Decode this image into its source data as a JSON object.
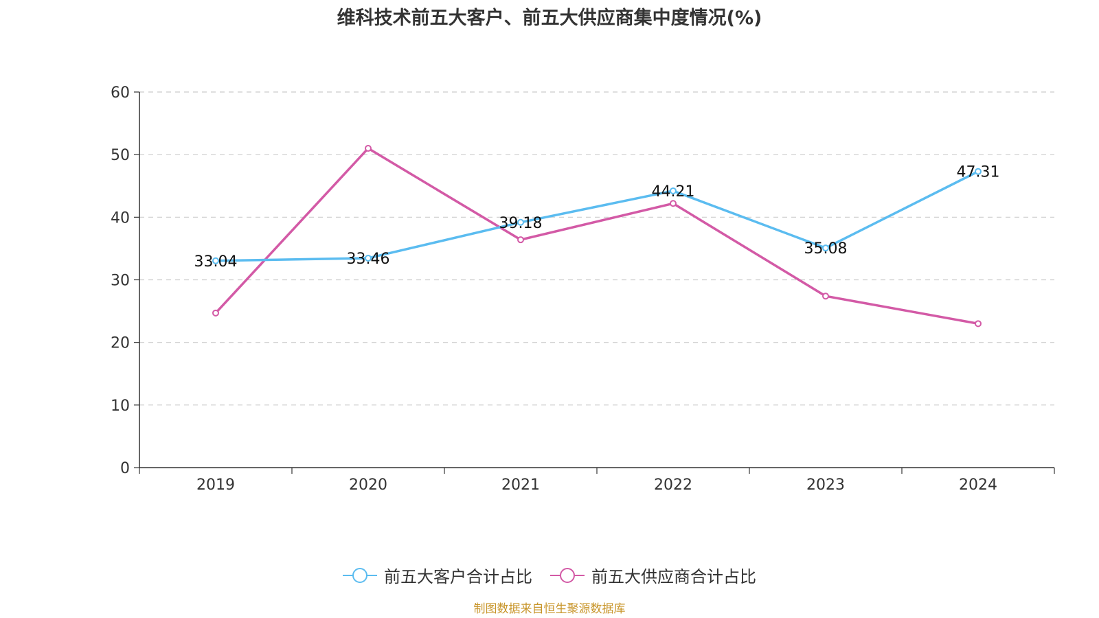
{
  "chart_data": {
    "type": "line",
    "title": "维科技术前五大客户、前五大供应商集中度情况(%)",
    "categories": [
      "2019",
      "2020",
      "2021",
      "2022",
      "2023",
      "2024"
    ],
    "y_ticks": [
      "0",
      "10",
      "20",
      "30",
      "40",
      "50",
      "60"
    ],
    "ylim": [
      0,
      60
    ],
    "grid": true,
    "legend_position": "bottom-center",
    "series": [
      {
        "name": "前五大客户合计占比",
        "color": "#5bbcf0",
        "values": [
          33.04,
          33.46,
          39.18,
          44.21,
          35.08,
          47.31
        ],
        "labels": [
          "33.04",
          "33.46",
          "39.18",
          "44.21",
          "35.08",
          "47.31"
        ]
      },
      {
        "name": "前五大供应商合计占比",
        "color": "#d35aa6",
        "values": [
          24.7,
          51.0,
          36.4,
          42.2,
          27.4,
          23.0
        ]
      }
    ]
  },
  "source_text": "制图数据来自恒生聚源数据库"
}
